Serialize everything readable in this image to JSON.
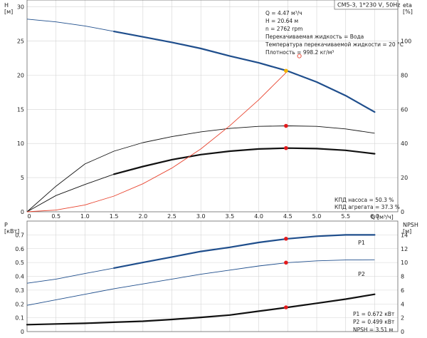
{
  "chart_data": [
    {
      "type": "line",
      "title": "CM5-3, 1*230 V, 50Hz",
      "xlabel": "Q [м³/ч]",
      "xlim": [
        0,
        6.4
      ],
      "x_ticks": [
        "0.5",
        "1.0",
        "1.5",
        "2.0",
        "2.5",
        "3.0",
        "3.5",
        "4.0",
        "4.5",
        "5.0",
        "5.5",
        "6.0"
      ],
      "y_left": {
        "label_top": "H",
        "label_unit": "[м]",
        "lim": [
          0,
          31
        ],
        "ticks": [
          "0",
          "5",
          "10",
          "15",
          "20",
          "25",
          "30"
        ]
      },
      "y_right": {
        "label_top": "eta",
        "label_unit": "[%]",
        "lim": [
          0,
          124
        ],
        "ticks": [
          "0",
          "20",
          "40",
          "60",
          "80",
          "100"
        ]
      },
      "series": [
        {
          "key": "h_curve",
          "axis": "left",
          "color": "#1f4e8c",
          "x": [
            0,
            0.5,
            1.0,
            1.5,
            2.0,
            2.5,
            3.0,
            3.5,
            4.0,
            4.5,
            5.0,
            5.5,
            6.0
          ],
          "y": [
            28.2,
            27.8,
            27.2,
            26.4,
            25.6,
            24.8,
            23.9,
            22.8,
            21.8,
            20.6,
            19.0,
            17.0,
            14.6
          ],
          "bold_from": 1.2
        },
        {
          "key": "eta_aggregate",
          "axis": "right",
          "color": "#111111",
          "x": [
            0,
            0.5,
            1.0,
            1.5,
            2.0,
            2.5,
            3.0,
            3.5,
            4.0,
            4.5,
            5.0,
            5.5,
            6.0
          ],
          "y": [
            0,
            9.5,
            16,
            22,
            26.5,
            30.5,
            33.5,
            35.5,
            36.8,
            37.3,
            37.0,
            36.0,
            34.0
          ],
          "bold_from": 1.2
        },
        {
          "key": "eta_pump",
          "axis": "right",
          "color": "#111111",
          "x": [
            0,
            0.5,
            1.0,
            1.5,
            2.0,
            2.5,
            3.0,
            3.5,
            4.0,
            4.5,
            5.0,
            5.5,
            6.0
          ],
          "y": [
            0,
            15,
            28,
            35.5,
            40.5,
            44,
            46.8,
            48.8,
            50.0,
            50.3,
            50.0,
            48.5,
            46.0
          ],
          "bold_from": 99
        },
        {
          "key": "system_curve",
          "axis": "left",
          "color": "#e8432e",
          "x": [
            0,
            0.5,
            1.0,
            1.5,
            2.0,
            2.5,
            3.0,
            3.5,
            4.0,
            4.5
          ],
          "y": [
            0,
            0.25,
            1.0,
            2.3,
            4.1,
            6.4,
            9.2,
            12.6,
            16.4,
            20.6
          ],
          "bold_from": 99
        }
      ],
      "points": [
        {
          "axis": "left",
          "x": 4.47,
          "y": 20.64,
          "color": "#f5b400"
        },
        {
          "axis": "right",
          "x": 4.47,
          "y": 50.3,
          "color": "#e31a1c"
        },
        {
          "axis": "right",
          "x": 4.47,
          "y": 37.3,
          "color": "#e31a1c"
        }
      ],
      "open_marker": {
        "axis": "left",
        "x": 4.7,
        "y": 22.8,
        "color": "#e8432e"
      },
      "info_lines": [
        "Q = 4.47 м³/ч",
        "H = 20.64 м",
        "n = 2762 rpm",
        "Перекачиваемая жидкость = Вода",
        "Температура перекачиваемой жидкости = 20 °C",
        "Плотность = 998.2 кг/м³"
      ],
      "efficiency_lines": [
        "КПД насоса = 50.3 %",
        "КПД агрегата = 37.3 %"
      ]
    },
    {
      "type": "line",
      "xlim": [
        0,
        6.4
      ],
      "y_left": {
        "label_top": "P",
        "label_unit": "[кВт]",
        "lim": [
          0,
          0.8
        ],
        "ticks": [
          "0",
          "0.1",
          "0.2",
          "0.3",
          "0.4",
          "0.5",
          "0.6",
          "0.7"
        ]
      },
      "y_right": {
        "label_top": "NPSH",
        "label_unit": "[м]",
        "lim": [
          0,
          16
        ],
        "ticks": [
          "0",
          "2",
          "4",
          "6",
          "8",
          "10",
          "12",
          "14"
        ]
      },
      "series": [
        {
          "key": "p1",
          "name": "P1",
          "axis": "left",
          "color": "#1f4e8c",
          "x": [
            0,
            0.5,
            1.0,
            1.5,
            2.0,
            2.5,
            3.0,
            3.5,
            4.0,
            4.5,
            5.0,
            5.5,
            6.0
          ],
          "y": [
            0.35,
            0.38,
            0.42,
            0.46,
            0.5,
            0.54,
            0.58,
            0.61,
            0.645,
            0.672,
            0.69,
            0.7,
            0.7
          ],
          "bold_from": 1.2
        },
        {
          "key": "p2",
          "name": "P2",
          "axis": "left",
          "color": "#1f4e8c",
          "x": [
            0,
            0.5,
            1.0,
            1.5,
            2.0,
            2.5,
            3.0,
            3.5,
            4.0,
            4.5,
            5.0,
            5.5,
            6.0
          ],
          "y": [
            0.19,
            0.23,
            0.27,
            0.31,
            0.345,
            0.38,
            0.415,
            0.445,
            0.475,
            0.499,
            0.512,
            0.518,
            0.52
          ],
          "bold_from": 99
        },
        {
          "key": "npsh",
          "axis": "right",
          "color": "#111111",
          "x": [
            0,
            0.5,
            1.0,
            1.5,
            2.0,
            2.5,
            3.0,
            3.5,
            4.0,
            4.5,
            5.0,
            5.5,
            6.0
          ],
          "y": [
            1.0,
            1.1,
            1.2,
            1.35,
            1.5,
            1.75,
            2.05,
            2.4,
            2.95,
            3.51,
            4.1,
            4.7,
            5.4
          ],
          "bold_from": 0
        }
      ],
      "points": [
        {
          "axis": "left",
          "x": 4.47,
          "y": 0.672,
          "color": "#e31a1c"
        },
        {
          "axis": "left",
          "x": 4.47,
          "y": 0.499,
          "color": "#e31a1c"
        },
        {
          "axis": "right",
          "x": 4.47,
          "y": 3.51,
          "color": "#e31a1c"
        }
      ],
      "info_lines": [
        "P1 = 0.672 кВт",
        "P2 = 0.499 кВт",
        "NPSH = 3.51 м"
      ]
    }
  ]
}
